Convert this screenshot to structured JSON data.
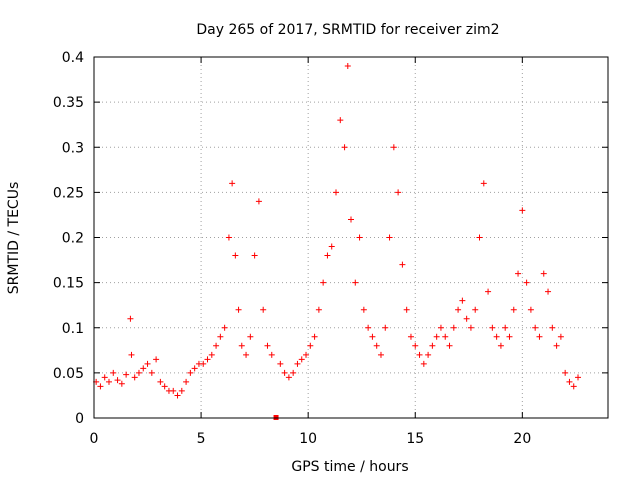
{
  "chart_data": {
    "type": "scatter",
    "title": "Day 265 of 2017, SRMTID for receiver zim2",
    "xlabel": "GPS time / hours",
    "ylabel": "SRMTID / TECUs",
    "xlim": [
      0,
      24
    ],
    "ylim": [
      0,
      0.4
    ],
    "x_ticks": [
      0,
      5,
      10,
      15,
      20
    ],
    "y_ticks": [
      0,
      0.05,
      0.1,
      0.15,
      0.2,
      0.25,
      0.3,
      0.35,
      0.4
    ],
    "grid": true,
    "marker": "+",
    "color": "#ff0000",
    "series": [
      {
        "name": "SRMTID",
        "x": [
          0.1,
          0.3,
          0.5,
          0.7,
          0.9,
          1.1,
          1.3,
          1.5,
          1.7,
          1.75,
          1.9,
          2.1,
          2.3,
          2.5,
          2.7,
          2.9,
          3.1,
          3.3,
          3.5,
          3.7,
          3.9,
          4.1,
          4.3,
          4.5,
          4.7,
          4.9,
          5.1,
          5.3,
          5.5,
          5.7,
          5.9,
          6.1,
          6.3,
          6.45,
          6.6,
          6.75,
          6.9,
          7.1,
          7.3,
          7.5,
          7.7,
          7.9,
          8.1,
          8.3,
          8.5,
          8.7,
          8.9,
          9.1,
          9.3,
          9.5,
          9.7,
          9.9,
          10.1,
          10.3,
          10.5,
          10.7,
          10.9,
          11.1,
          11.3,
          11.5,
          11.7,
          11.85,
          12.0,
          12.2,
          12.4,
          12.6,
          12.8,
          13.0,
          13.2,
          13.4,
          13.6,
          13.8,
          14.0,
          14.2,
          14.4,
          14.6,
          14.8,
          15.0,
          15.2,
          15.4,
          15.6,
          15.8,
          16.0,
          16.2,
          16.4,
          16.6,
          16.8,
          17.0,
          17.2,
          17.4,
          17.6,
          17.8,
          18.0,
          18.2,
          18.4,
          18.6,
          18.8,
          19.0,
          19.2,
          19.4,
          19.6,
          19.8,
          20.0,
          20.2,
          20.4,
          20.6,
          20.8,
          21.0,
          21.2,
          21.4,
          21.6,
          21.8,
          22.0,
          22.2,
          22.4,
          22.6
        ],
        "y": [
          0.04,
          0.035,
          0.045,
          0.04,
          0.05,
          0.042,
          0.038,
          0.048,
          0.11,
          0.07,
          0.045,
          0.05,
          0.055,
          0.06,
          0.05,
          0.065,
          0.04,
          0.035,
          0.03,
          0.03,
          0.025,
          0.03,
          0.04,
          0.05,
          0.055,
          0.06,
          0.06,
          0.065,
          0.07,
          0.08,
          0.09,
          0.1,
          0.2,
          0.26,
          0.18,
          0.12,
          0.08,
          0.07,
          0.09,
          0.18,
          0.24,
          0.12,
          0.08,
          0.07,
          0.0,
          0.06,
          0.05,
          0.045,
          0.05,
          0.06,
          0.065,
          0.07,
          0.08,
          0.09,
          0.12,
          0.15,
          0.18,
          0.19,
          0.25,
          0.33,
          0.3,
          0.39,
          0.22,
          0.15,
          0.2,
          0.12,
          0.1,
          0.09,
          0.08,
          0.07,
          0.1,
          0.2,
          0.3,
          0.25,
          0.17,
          0.12,
          0.09,
          0.08,
          0.07,
          0.06,
          0.07,
          0.08,
          0.09,
          0.1,
          0.09,
          0.08,
          0.1,
          0.12,
          0.13,
          0.11,
          0.1,
          0.12,
          0.2,
          0.26,
          0.14,
          0.1,
          0.09,
          0.08,
          0.1,
          0.09,
          0.12,
          0.16,
          0.23,
          0.15,
          0.12,
          0.1,
          0.09,
          0.16,
          0.14,
          0.1,
          0.08,
          0.09,
          0.05,
          0.04,
          0.035,
          0.045
        ]
      }
    ]
  }
}
